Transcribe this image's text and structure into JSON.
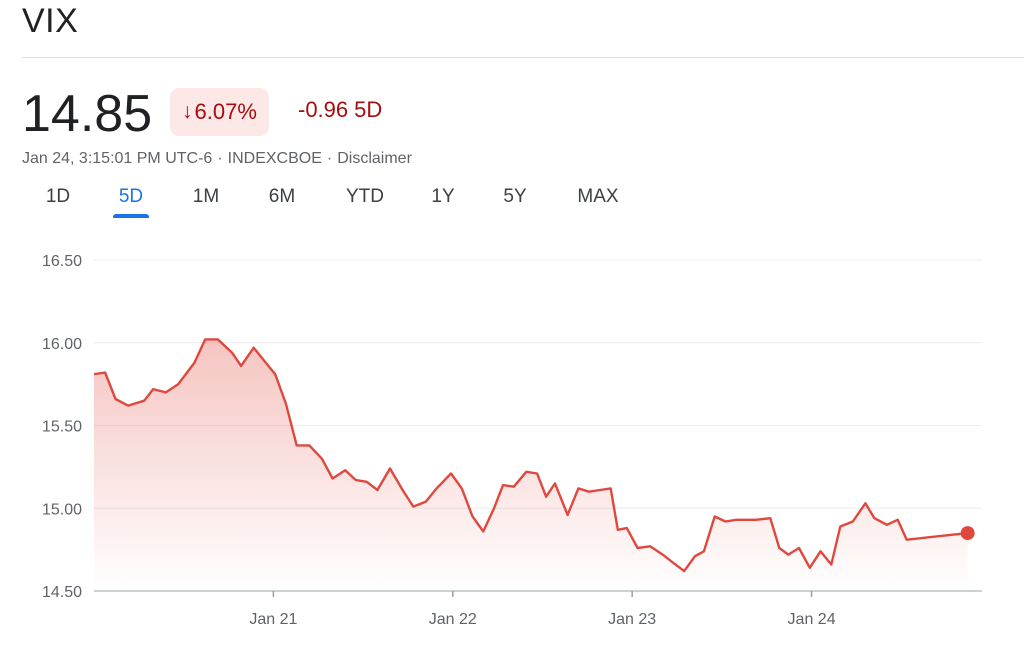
{
  "header": {
    "title": "VIX",
    "price": "14.85",
    "change_percent": "6.07%",
    "change_arrow": "↓",
    "change_value": "-0.96",
    "change_period": "5D",
    "timestamp": "Jan 24, 3:15:01 PM UTC-6",
    "exchange": "INDEXCBOE",
    "separator": "·",
    "disclaimer": "Disclaimer"
  },
  "tabs": [
    "1D",
    "5D",
    "1M",
    "6M",
    "YTD",
    "1Y",
    "5Y",
    "MAX"
  ],
  "active_tab": "5D",
  "colors": {
    "line": "#e0483e",
    "negative_text": "#a50e0e",
    "badge_bg": "#fce8e6",
    "active_tab": "#1a73e8"
  },
  "chart_data": {
    "type": "area",
    "title": "",
    "xlabel": "",
    "ylabel": "",
    "ylim": [
      14.5,
      16.5
    ],
    "yticks": [
      "16.50",
      "16.00",
      "15.50",
      "15.00",
      "14.50"
    ],
    "ytick_values": [
      16.5,
      16.0,
      15.5,
      15.0,
      14.5
    ],
    "xtick_labels": [
      "Jan 21",
      "Jan 22",
      "Jan 23",
      "Jan 24"
    ],
    "xtick_values": [
      1.0,
      2.0,
      3.0,
      4.0
    ],
    "xlim": [
      0,
      4.95
    ],
    "grid": true,
    "series": [
      {
        "values": [
          15.81,
          15.82,
          15.66,
          15.62,
          15.65,
          15.72,
          15.7,
          15.75,
          15.88,
          16.02,
          16.02,
          15.94,
          15.86,
          15.97,
          15.89,
          15.81,
          15.63,
          15.38,
          15.38,
          15.3,
          15.18,
          15.23,
          15.17,
          15.16,
          15.11,
          15.24,
          15.11,
          15.01,
          15.04,
          15.12,
          15.21,
          15.12,
          14.95,
          14.86,
          15.0,
          15.14,
          15.13,
          15.22,
          15.21,
          15.07,
          15.15,
          14.96,
          15.12,
          15.1,
          15.11,
          15.12,
          14.87,
          14.88,
          14.76,
          14.77,
          14.72,
          14.67,
          14.62,
          14.71,
          14.74,
          14.95,
          14.92,
          14.93,
          14.93,
          14.93,
          14.94,
          14.76,
          14.72,
          14.76,
          14.64,
          14.74,
          14.66,
          14.89,
          14.92,
          15.03,
          14.94,
          14.9,
          14.93,
          14.81,
          14.85
        ],
        "x": [
          0,
          0.062,
          0.12,
          0.19,
          0.28,
          0.33,
          0.4,
          0.47,
          0.56,
          0.62,
          0.69,
          0.77,
          0.82,
          0.89,
          0.95,
          1.01,
          1.07,
          1.13,
          1.2,
          1.27,
          1.33,
          1.4,
          1.46,
          1.52,
          1.58,
          1.65,
          1.72,
          1.78,
          1.85,
          1.91,
          1.99,
          2.05,
          2.11,
          2.17,
          2.23,
          2.28,
          2.34,
          2.41,
          2.47,
          2.52,
          2.57,
          2.64,
          2.7,
          2.76,
          2.82,
          2.88,
          2.92,
          2.97,
          3.03,
          3.1,
          3.17,
          3.23,
          3.29,
          3.35,
          3.4,
          3.46,
          3.52,
          3.58,
          3.63,
          3.69,
          3.77,
          3.82,
          3.87,
          3.93,
          3.99,
          4.05,
          4.11,
          4.16,
          4.23,
          4.3,
          4.35,
          4.42,
          4.48,
          4.53,
          4.87
        ]
      }
    ],
    "last_point": {
      "x": 4.87,
      "y": 14.85
    }
  }
}
